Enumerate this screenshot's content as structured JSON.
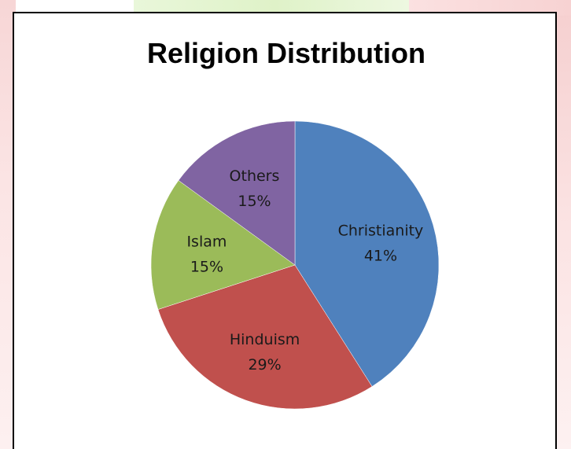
{
  "chart_data": {
    "type": "pie",
    "title": "Religion Distribution",
    "categories": [
      "Christianity",
      "Hinduism",
      "Islam",
      "Others"
    ],
    "values": [
      41,
      29,
      15,
      15
    ],
    "value_labels": [
      "41%",
      "29%",
      "15%",
      "15%"
    ],
    "colors": [
      "#4f81bd",
      "#c0504d",
      "#9bbb59",
      "#8064a2"
    ],
    "start_angle_deg": 0,
    "direction": "clockwise",
    "legend": "none"
  }
}
